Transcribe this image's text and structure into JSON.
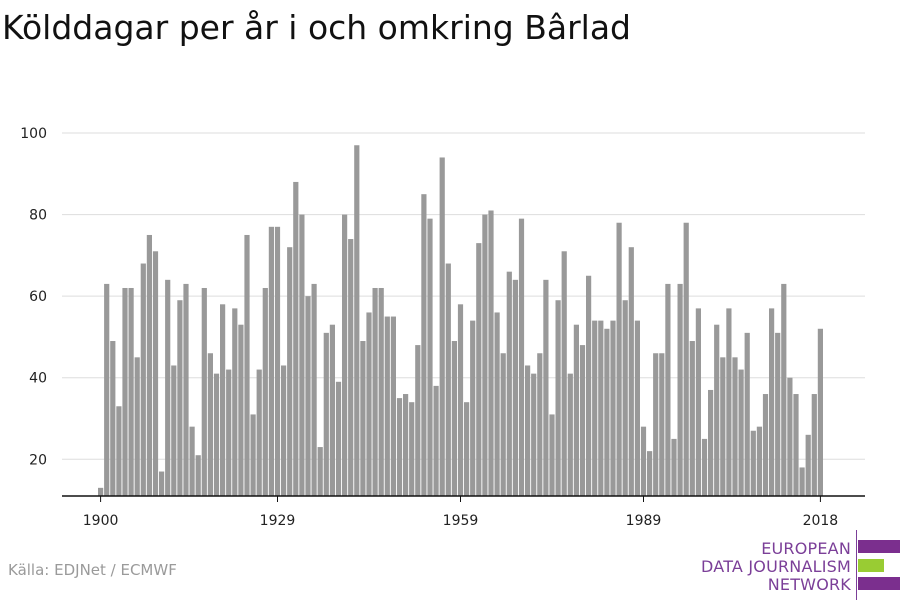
{
  "title": "Kölddagar per år i och omkring Bârlad",
  "source": "Källa: EDJNet / ECMWF",
  "logo": {
    "line1": "EUROPEAN",
    "line2": "DATA JOURNALISM",
    "line3": "NETWORK",
    "colors": {
      "purple": "#7b2f8e",
      "green": "#99cc33"
    }
  },
  "chart_data": {
    "type": "bar",
    "title": "Kölddagar per år i och omkring Bârlad",
    "xlabel": "",
    "ylabel": "",
    "x_start": 1900,
    "x_ticks": [
      1900,
      1929,
      1959,
      1989,
      2018
    ],
    "y_ticks": [
      20,
      40,
      60,
      80,
      100
    ],
    "ylim": [
      11,
      100
    ],
    "grid": true,
    "bar_color": "#999999",
    "values": [
      13,
      63,
      49,
      33,
      62,
      62,
      45,
      68,
      75,
      71,
      17,
      64,
      43,
      59,
      63,
      28,
      21,
      62,
      46,
      41,
      58,
      42,
      57,
      53,
      75,
      31,
      42,
      62,
      77,
      77,
      43,
      72,
      88,
      80,
      60,
      63,
      23,
      51,
      53,
      39,
      80,
      74,
      97,
      49,
      56,
      62,
      62,
      55,
      55,
      35,
      36,
      34,
      48,
      85,
      79,
      38,
      94,
      68,
      49,
      58,
      34,
      54,
      73,
      80,
      81,
      56,
      46,
      66,
      64,
      79,
      43,
      41,
      46,
      64,
      31,
      59,
      71,
      41,
      53,
      48,
      65,
      54,
      54,
      52,
      54,
      78,
      59,
      72,
      54,
      28,
      22,
      46,
      46,
      63,
      25,
      63,
      78,
      49,
      57,
      25,
      37,
      53,
      45,
      57,
      45,
      42,
      51,
      27,
      28,
      36,
      57,
      51,
      63,
      40,
      36,
      18,
      26,
      36,
      52
    ]
  }
}
